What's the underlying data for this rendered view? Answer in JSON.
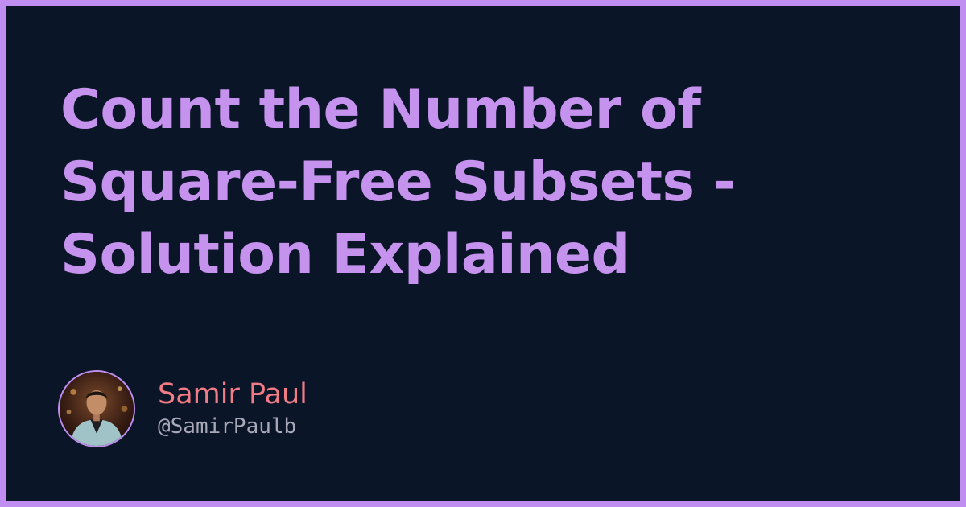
{
  "title": {
    "line1": "Count the Number of",
    "line2": "Square-Free Subsets -",
    "line3": "Solution Explained"
  },
  "author": {
    "name": "Samir Paul",
    "handle": "@SamirPaulb",
    "avatar_icon": "author-photo"
  },
  "colors": {
    "frame": "#c08ef0",
    "background": "#0b1528",
    "title": "#c592ee",
    "name": "#f17c85",
    "handle": "#a8a8b8"
  }
}
